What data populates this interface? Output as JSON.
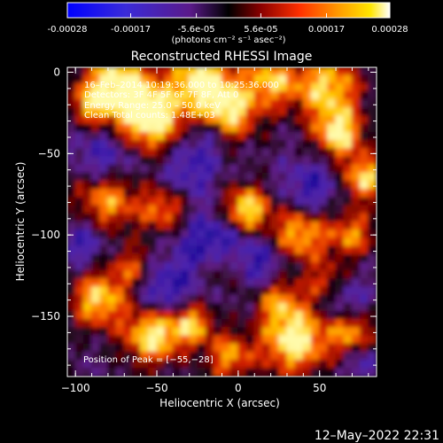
{
  "colorbar": {
    "tick_labels": [
      "-0.00028",
      "-0.00017",
      "-5.6e-05",
      "5.6e-05",
      "0.00017",
      "0.00028"
    ],
    "tick_values": [
      -0.00028,
      -0.00017,
      -5.6e-05,
      5.6e-05,
      0.00017,
      0.00028
    ],
    "range": [
      -0.00028,
      0.00028
    ],
    "units_label": "(photons cm⁻² s⁻¹ asec⁻²)"
  },
  "chart_data": {
    "type": "heatmap",
    "title": "Reconstructed RHESSI Image",
    "xlabel": "Heliocentric X (arcsec)",
    "ylabel": "Heliocentric Y (arcsec)",
    "xlim": [
      -105,
      85
    ],
    "ylim": [
      -187,
      3
    ],
    "x_ticks": [
      -100,
      -50,
      0,
      50
    ],
    "y_ticks": [
      0,
      -50,
      -100,
      -150
    ],
    "x_tick_labels": [
      "−100",
      "−50",
      "0",
      "50"
    ],
    "y_tick_labels": [
      "0",
      "−50",
      "−100",
      "−150"
    ],
    "annotations": {
      "time": "16–Feb–2014 10:19:36.000 to 10:25:36.000",
      "detectors": "Detectors: 3F 4F 5F 6F 7F 8F, Att 0",
      "energy": "Energy Range: 25.0 – 50.0 keV",
      "clean": "Clean     Total counts: 1.48E+03",
      "peak": "Position of Peak = [−55,−28]"
    },
    "peak_position": [
      -55,
      -28
    ],
    "colormap": "blue-purple-red-yellow-white"
  },
  "footer_timestamp": "12–May–2022 22:31"
}
